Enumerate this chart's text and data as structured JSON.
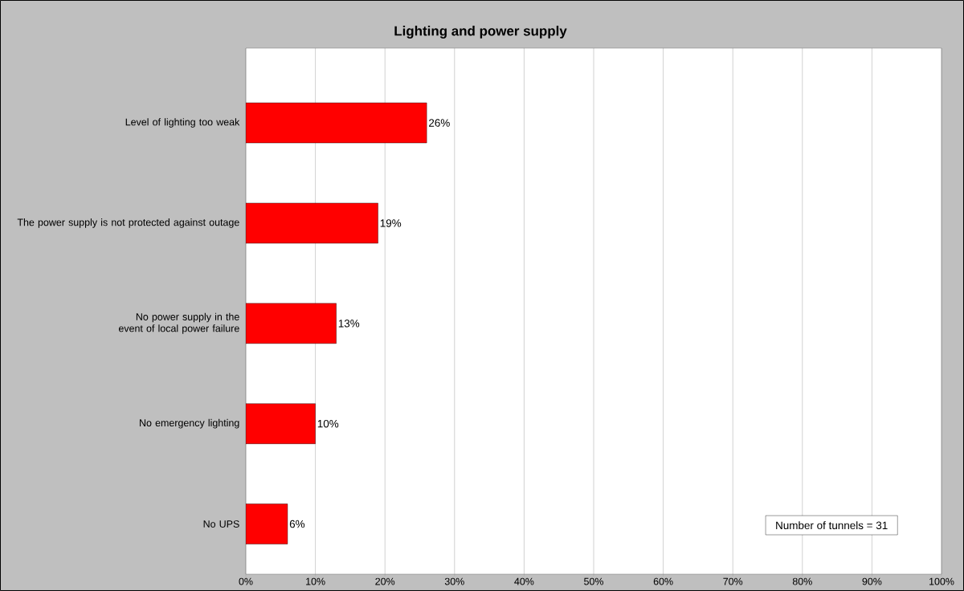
{
  "chart_data": {
    "type": "bar",
    "orientation": "horizontal",
    "title": "Lighting and power supply",
    "categories": [
      "Level of lighting too weak",
      "The power supply is not protected against outage",
      "No power supply in the event of local power failure",
      "No emergency lighting",
      "No UPS"
    ],
    "values": [
      26,
      19,
      13,
      10,
      6
    ],
    "value_labels": [
      "26%",
      "19%",
      "13%",
      "10%",
      "6%"
    ],
    "color": "#ff0000",
    "xlim": [
      0,
      100
    ],
    "xticks": [
      {
        "value": 0,
        "label": "0%"
      },
      {
        "value": 10,
        "label": "10%"
      },
      {
        "value": 20,
        "label": "20%"
      },
      {
        "value": 30,
        "label": "30%"
      },
      {
        "value": 40,
        "label": "40%"
      },
      {
        "value": 50,
        "label": "50%"
      },
      {
        "value": 60,
        "label": "60%"
      },
      {
        "value": 70,
        "label": "70%"
      },
      {
        "value": 80,
        "label": "80%"
      },
      {
        "value": 90,
        "label": "90%"
      },
      {
        "value": 100,
        "label": "100%"
      }
    ],
    "grid": "x",
    "annotations": [
      "Number of tunnels = 31"
    ]
  }
}
